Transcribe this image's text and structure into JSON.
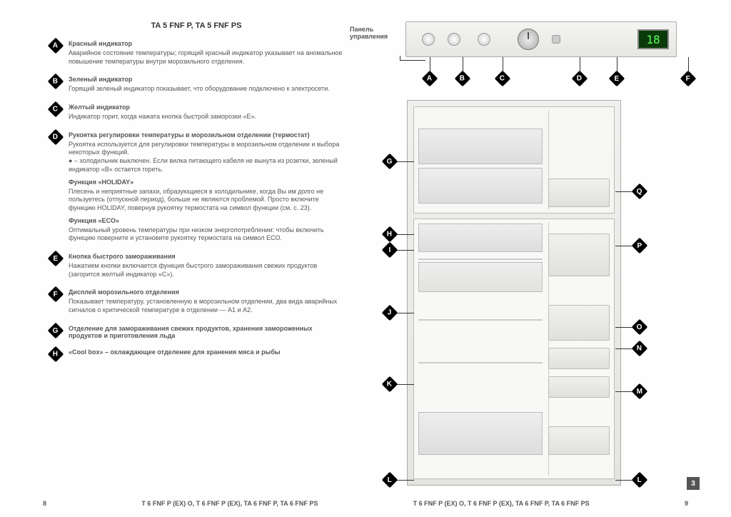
{
  "title": "TA 5 FNF P, TA 5 FNF PS",
  "panel_label": "Панель\nуправления",
  "display_value": "18",
  "items": [
    {
      "letter": "A",
      "head": "Красный индикатор",
      "body": "Аварийное состояние температуры; горящий красный индикатор указывает на аномальное повышение температуры внутри морозильного отделения."
    },
    {
      "letter": "B",
      "head": "Зеленый индикатор",
      "body": "Горящий зеленый индикатор показывает, что оборудование подключено к электросети."
    },
    {
      "letter": "C",
      "head": "Желтый индикатор",
      "body": "Индикатор горит, когда нажата кнопка быстрой заморозки «E»."
    },
    {
      "letter": "D",
      "head": "Рукоятка регулировки температуры в морозильном отделении (термостат)",
      "body": "Рукоятка используется для регулировки температуры в морозильном отделении и выбора некоторых функций.\n● – холодильник выключен. Если вилка питающего кабеля не вынута из розетки, зеленый индикатор «B» остается гореть.",
      "sub": [
        {
          "h": "Функция «HOLIDAY»",
          "b": "Плесень и неприятные запахи, образующиеся в холодильнике, когда Вы им долго не пользуетесь (отпускной период), больше не являются проблемой. Просто включите функцию HOLIDAY, повернув рукоятку термостата на символ функции (см. с. 23)."
        },
        {
          "h": "Функция «ECO»",
          "b": "Оптимальный уровень температуры при низком энергопотреблении: чтобы включить функцию поверните и установите рукоятку термостата на символ ECO."
        }
      ]
    },
    {
      "letter": "E",
      "head": "Кнопка быстрого замораживания",
      "body": "Нажатием кнопки включается функция быстрого замораживания свежих продуктов (загорится желтый индикатор «C»)."
    },
    {
      "letter": "F",
      "head": "Дисплей морозильного отделения",
      "body": "Показывает температуру, установленную в морозильном отделении, два вида аварийных сигналов о критической температуре в отделении — A1 и A2."
    },
    {
      "letter": "G",
      "head": "Отделение для замораживания свежих продуктов, хранения замороженных продуктов и приготовления льда",
      "body": ""
    },
    {
      "letter": "H",
      "head": "«Cool box» – охлаждающее отделение для хранения мяса и рыбы",
      "body": ""
    }
  ],
  "panel_badges": [
    "A",
    "B",
    "C",
    "D",
    "E",
    "F"
  ],
  "fridge_left": [
    "G",
    "H",
    "I",
    "J",
    "K",
    "L"
  ],
  "fridge_right": [
    "Q",
    "P",
    "O",
    "N",
    "M",
    "L"
  ],
  "footer": {
    "left_page": "8",
    "right_page": "9",
    "models_left": "T 6 FNF P (EX) O, T 6 FNF P (EX), TA 6 FNF P, TA 6 FNF PS",
    "models_right": "T 6 FNF P (EX) O, T 6 FNF P (EX), TA 6 FNF P, TA 6 FNF PS"
  },
  "page_index": "3",
  "colors": {
    "badge": "#000000",
    "text": "#555555",
    "panel": "#e8e8e4"
  }
}
